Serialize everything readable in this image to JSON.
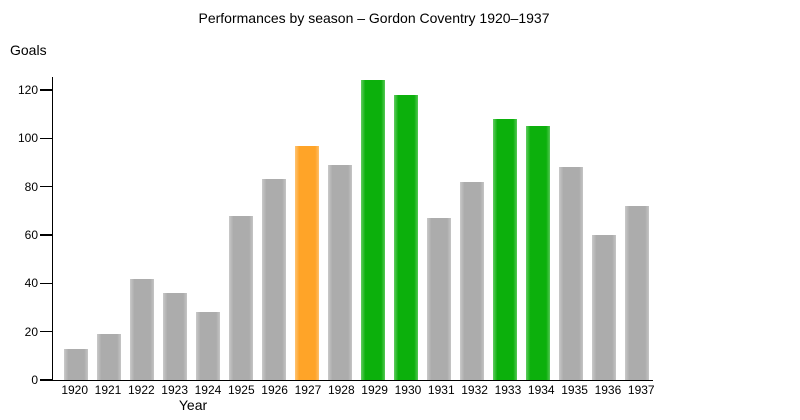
{
  "chart_data": {
    "type": "bar",
    "title": "Performances by season – Gordon Coventry 1920–1937",
    "xlabel": "Year",
    "ylabel": "Goals",
    "ylim": [
      0,
      125
    ],
    "y_ticks": [
      0,
      20,
      40,
      60,
      80,
      100,
      120
    ],
    "categories": [
      "1920",
      "1921",
      "1922",
      "1923",
      "1924",
      "1925",
      "1926",
      "1927",
      "1928",
      "1929",
      "1930",
      "1931",
      "1932",
      "1933",
      "1934",
      "1935",
      "1936",
      "1937"
    ],
    "values": [
      13,
      19,
      42,
      36,
      28,
      68,
      83,
      97,
      89,
      124,
      118,
      67,
      82,
      108,
      105,
      88,
      60,
      72
    ],
    "colors": {
      "default": "#ACACAC",
      "orange_highlight": "#FFA428",
      "green_highlight": "#0CB00C"
    },
    "highlight_orange_years": [
      "1927"
    ],
    "highlight_green_years": [
      "1929",
      "1930",
      "1933",
      "1934"
    ],
    "grid": false,
    "legend": false
  }
}
